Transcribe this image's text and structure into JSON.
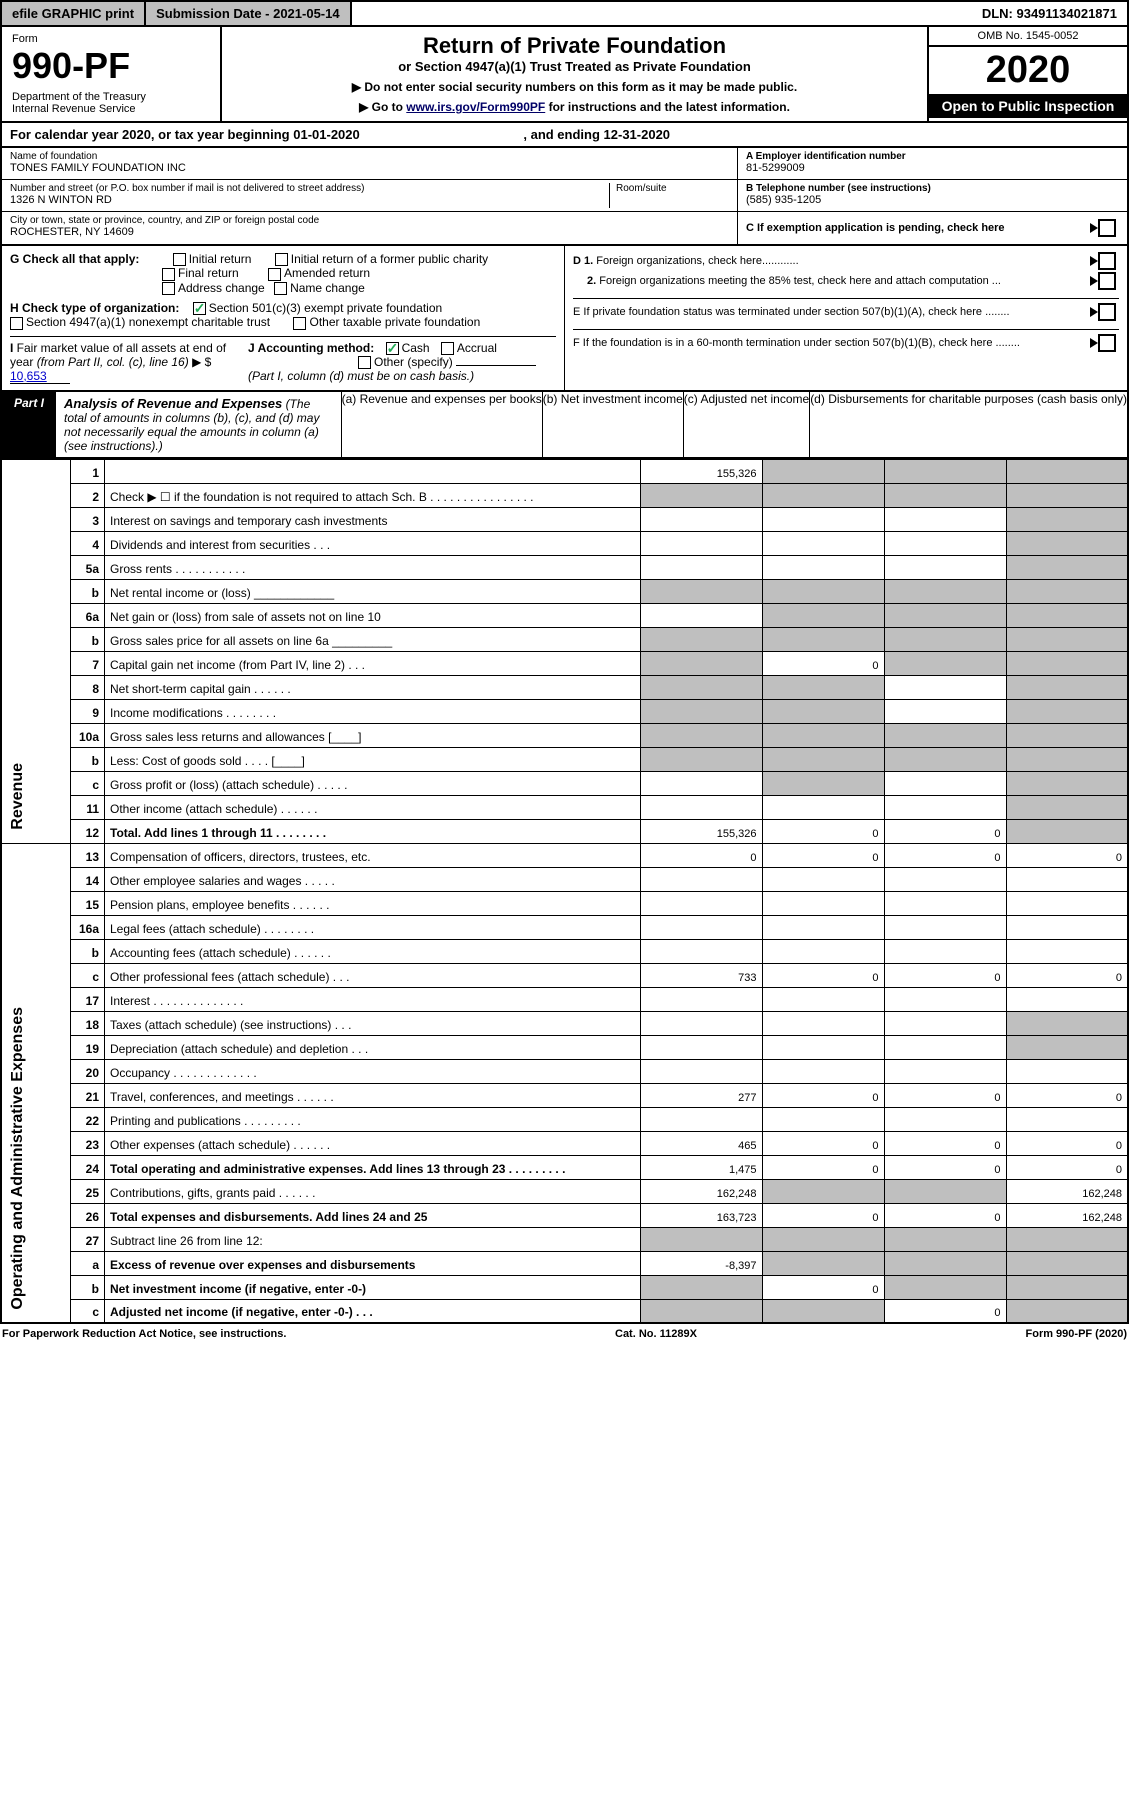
{
  "topbar": {
    "efile": "efile GRAPHIC print",
    "subdate_label": "Submission Date - 2021-05-14",
    "dln": "DLN: 93491134021871"
  },
  "header": {
    "form_label": "Form",
    "form_num": "990-PF",
    "dept": "Department of the Treasury\nInternal Revenue Service",
    "title": "Return of Private Foundation",
    "subtitle": "or Section 4947(a)(1) Trust Treated as Private Foundation",
    "note1": "▶ Do not enter social security numbers on this form as it may be made public.",
    "note2_pre": "▶ Go to ",
    "note2_link": "www.irs.gov/Form990PF",
    "note2_post": " for instructions and the latest information.",
    "omb": "OMB No. 1545-0052",
    "year": "2020",
    "open": "Open to Public Inspection"
  },
  "calyear": {
    "pre": "For calendar year 2020, or tax year beginning ",
    "begin": "01-01-2020",
    "mid": " , and ending ",
    "end": "12-31-2020"
  },
  "id": {
    "name_lbl": "Name of foundation",
    "name": "TONES FAMILY FOUNDATION INC",
    "addr_lbl": "Number and street (or P.O. box number if mail is not delivered to street address)",
    "addr": "1326 N WINTON RD",
    "room_lbl": "Room/suite",
    "city_lbl": "City or town, state or province, country, and ZIP or foreign postal code",
    "city": "ROCHESTER, NY  14609",
    "ein_lbl": "A Employer identification number",
    "ein": "81-5299009",
    "tel_lbl": "B Telephone number (see instructions)",
    "tel": "(585) 935-1205",
    "c_lbl": "C If exemption application is pending, check here"
  },
  "checks": {
    "g_lbl": "G Check all that apply:",
    "g_opts": [
      "Initial return",
      "Initial return of a former public charity",
      "Final return",
      "Amended return",
      "Address change",
      "Name change"
    ],
    "h_lbl": "H Check type of organization:",
    "h1": "Section 501(c)(3) exempt private foundation",
    "h2": "Section 4947(a)(1) nonexempt charitable trust",
    "h3": "Other taxable private foundation",
    "i_lbl": "I Fair market value of all assets at end of year (from Part II, col. (c), line 16) ▶ $",
    "i_val": "10,653",
    "j_lbl": "J Accounting method:",
    "j1": "Cash",
    "j2": "Accrual",
    "j3": "Other (specify)",
    "j_note": "(Part I, column (d) must be on cash basis.)",
    "d1": "D 1. Foreign organizations, check here............",
    "d2": "2. Foreign organizations meeting the 85% test, check here and attach computation ...",
    "e": "E  If private foundation status was terminated under section 507(b)(1)(A), check here ........",
    "f": "F  If the foundation is in a 60-month termination under section 507(b)(1)(B), check here ........"
  },
  "part1": {
    "tab": "Part I",
    "title": "Analysis of Revenue and Expenses",
    "title_note": " (The total of amounts in columns (b), (c), and (d) may not necessarily equal the amounts in column (a) (see instructions).)",
    "cols": {
      "a": "(a) Revenue and expenses per books",
      "b": "(b) Net investment income",
      "c": "(c) Adjusted net income",
      "d": "(d) Disbursements for charitable purposes (cash basis only)"
    }
  },
  "side": {
    "rev": "Revenue",
    "exp": "Operating and Administrative Expenses"
  },
  "rows": [
    {
      "n": "1",
      "d": "",
      "a": "155,326",
      "b": "",
      "c": "",
      "bg": "g",
      "cg": "g",
      "dg": "g"
    },
    {
      "n": "2",
      "d": "Check ▶ ☐ if the foundation is not required to attach Sch. B   .  .  .  .  .  .  .  .  .  .  .  .  .  .  .  .",
      "ag": "g",
      "bg": "g",
      "cg": "g",
      "dg": "g"
    },
    {
      "n": "3",
      "d": "Interest on savings and temporary cash investments",
      "dg": "g"
    },
    {
      "n": "4",
      "d": "Dividends and interest from securities   .  .  .",
      "dg": "g"
    },
    {
      "n": "5a",
      "d": "Gross rents   .  .  .  .  .  .  .  .  .  .  .",
      "dg": "g"
    },
    {
      "n": "b",
      "d": "Net rental income or (loss)  ____________",
      "ag": "g",
      "bg": "g",
      "cg": "g",
      "dg": "g"
    },
    {
      "n": "6a",
      "d": "Net gain or (loss) from sale of assets not on line 10",
      "bg": "g",
      "cg": "g",
      "dg": "g"
    },
    {
      "n": "b",
      "d": "Gross sales price for all assets on line 6a _________",
      "ag": "g",
      "bg": "g",
      "cg": "g",
      "dg": "g"
    },
    {
      "n": "7",
      "d": "Capital gain net income (from Part IV, line 2)   .  .  .",
      "ag": "g",
      "b": "0",
      "cg": "g",
      "dg": "g"
    },
    {
      "n": "8",
      "d": "Net short-term capital gain   .  .  .  .  .  .",
      "ag": "g",
      "bg": "g",
      "dg": "g"
    },
    {
      "n": "9",
      "d": "Income modifications   .  .  .  .  .  .  .  .",
      "ag": "g",
      "bg": "g",
      "dg": "g"
    },
    {
      "n": "10a",
      "d": "Gross sales less returns and allowances  [____]",
      "ag": "g",
      "bg": "g",
      "cg": "g",
      "dg": "g"
    },
    {
      "n": "b",
      "d": "Less: Cost of goods sold   .  .  .  .  [____]",
      "ag": "g",
      "bg": "g",
      "cg": "g",
      "dg": "g"
    },
    {
      "n": "c",
      "d": "Gross profit or (loss) (attach schedule)   .  .  .  .  .",
      "bg": "g",
      "dg": "g"
    },
    {
      "n": "11",
      "d": "Other income (attach schedule)   .  .  .  .  .  .",
      "dg": "g"
    },
    {
      "n": "12",
      "d": "Total. Add lines 1 through 11   .  .  .  .  .  .  .  .",
      "bold": true,
      "a": "155,326",
      "b": "0",
      "c": "0",
      "dg": "g"
    },
    {
      "n": "13",
      "d": "Compensation of officers, directors, trustees, etc.",
      "a": "0",
      "b": "0",
      "c": "0",
      "dd": "0"
    },
    {
      "n": "14",
      "d": "Other employee salaries and wages   .  .  .  .  ."
    },
    {
      "n": "15",
      "d": "Pension plans, employee benefits   .  .  .  .  .  ."
    },
    {
      "n": "16a",
      "d": "Legal fees (attach schedule)   .  .  .  .  .  .  .  ."
    },
    {
      "n": "b",
      "d": "Accounting fees (attach schedule)   .  .  .  .  .  ."
    },
    {
      "n": "c",
      "d": "Other professional fees (attach schedule)   .  .  .",
      "a": "733",
      "b": "0",
      "c": "0",
      "dd": "0"
    },
    {
      "n": "17",
      "d": "Interest   .  .  .  .  .  .  .  .  .  .  .  .  .  ."
    },
    {
      "n": "18",
      "d": "Taxes (attach schedule) (see instructions)   .  .  .",
      "dg": "g"
    },
    {
      "n": "19",
      "d": "Depreciation (attach schedule) and depletion   .  .  .",
      "dg": "g"
    },
    {
      "n": "20",
      "d": "Occupancy   .  .  .  .  .  .  .  .  .  .  .  .  ."
    },
    {
      "n": "21",
      "d": "Travel, conferences, and meetings   .  .  .  .  .  .",
      "a": "277",
      "b": "0",
      "c": "0",
      "dd": "0"
    },
    {
      "n": "22",
      "d": "Printing and publications   .  .  .  .  .  .  .  .  ."
    },
    {
      "n": "23",
      "d": "Other expenses (attach schedule)   .  .  .  .  .  .",
      "a": "465",
      "b": "0",
      "c": "0",
      "dd": "0"
    },
    {
      "n": "24",
      "d": "Total operating and administrative expenses. Add lines 13 through 23   .  .  .  .  .  .  .  .  .",
      "bold": true,
      "a": "1,475",
      "b": "0",
      "c": "0",
      "dd": "0"
    },
    {
      "n": "25",
      "d": "Contributions, gifts, grants paid   .  .  .  .  .  .",
      "a": "162,248",
      "bg": "g",
      "cg": "g",
      "dd": "162,248"
    },
    {
      "n": "26",
      "d": "Total expenses and disbursements. Add lines 24 and 25",
      "bold": true,
      "a": "163,723",
      "b": "0",
      "c": "0",
      "dd": "162,248"
    },
    {
      "n": "27",
      "d": "Subtract line 26 from line 12:",
      "ag": "g",
      "bg": "g",
      "cg": "g",
      "dg": "g"
    },
    {
      "n": "a",
      "d": "Excess of revenue over expenses and disbursements",
      "bold": true,
      "a": "-8,397",
      "bg": "g",
      "cg": "g",
      "dg": "g"
    },
    {
      "n": "b",
      "d": "Net investment income (if negative, enter -0-)",
      "bold": true,
      "ag": "g",
      "b": "0",
      "cg": "g",
      "dg": "g"
    },
    {
      "n": "c",
      "d": "Adjusted net income (if negative, enter -0-)   .  .  .",
      "bold": true,
      "ag": "g",
      "bg": "g",
      "c": "0",
      "dg": "g"
    }
  ],
  "footer": {
    "left": "For Paperwork Reduction Act Notice, see instructions.",
    "mid": "Cat. No. 11289X",
    "right": "Form 990-PF (2020)"
  },
  "colors": {
    "grey": "#bfbfbf",
    "link": "#0000cc"
  }
}
